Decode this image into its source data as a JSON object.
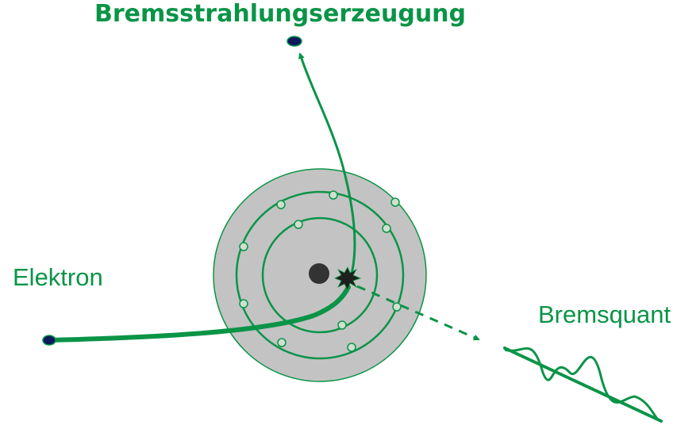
{
  "title": "Bremsstrahlungserzeugung",
  "labels": {
    "electron": "Elektron",
    "photon": "Bremsquant"
  },
  "colors": {
    "accent": "#0a9447",
    "atom_fill": "#c3c3c3",
    "nucleus": "#333333",
    "electron_dot": "#0a1a5c",
    "shell_electron_fill": "#cfe0cf"
  }
}
